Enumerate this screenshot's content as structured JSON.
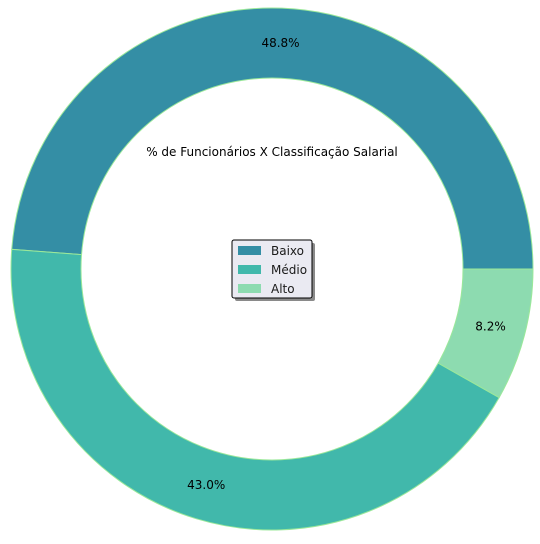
{
  "chart_data": {
    "type": "pie",
    "style": "donut",
    "title": "% de Funcionários X Classificação Salarial",
    "categories": [
      "Baixo",
      "Médio",
      "Alto"
    ],
    "values": [
      48.8,
      43.0,
      8.2
    ],
    "labels": [
      "48.8%",
      "43.0%",
      "8.2%"
    ],
    "colors": [
      "#348ea5",
      "#41b8ab",
      "#8ddbb0"
    ],
    "edge_color": "#9be89a",
    "start_angle_deg": 0,
    "direction": "counterclockwise",
    "legend": {
      "placement": "center",
      "entries": [
        "Baixo",
        "Médio",
        "Alto"
      ]
    }
  }
}
